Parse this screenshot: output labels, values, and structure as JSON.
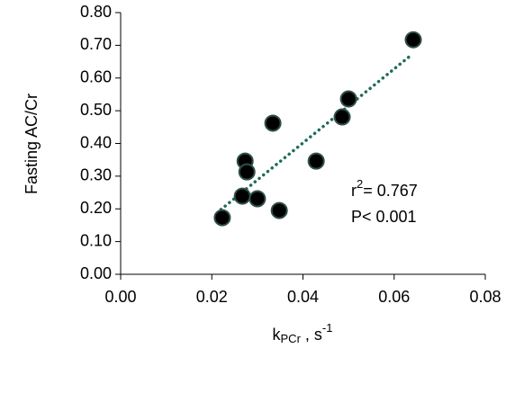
{
  "chart_data": {
    "type": "scatter",
    "y_label": "Fasting AC/Cr",
    "x_label": {
      "main": "k",
      "sub": "PCr",
      "mid": " , s",
      "sup": "-1"
    },
    "annotations": [
      {
        "text": "r",
        "sup": "2",
        "rest": "= 0.767"
      },
      {
        "text": "P< 0.001"
      }
    ],
    "x": [
      0.0223,
      0.0267,
      0.0273,
      0.0277,
      0.03,
      0.0334,
      0.0348,
      0.0429,
      0.0486,
      0.05,
      0.0642
    ],
    "values": [
      0.173,
      0.239,
      0.346,
      0.313,
      0.231,
      0.462,
      0.195,
      0.346,
      0.481,
      0.536,
      0.717
    ],
    "color": "#000000",
    "trendline": {
      "x": [
        0.022,
        0.064
      ],
      "y": [
        0.198,
        0.673
      ],
      "color": "#1e6b5c"
    },
    "xlim": [
      0,
      0.08
    ],
    "xticks": [
      {
        "value": 0,
        "label": "0.00"
      },
      {
        "value": 0.02,
        "label": "0.02"
      },
      {
        "value": 0.04,
        "label": "0.04"
      },
      {
        "value": 0.06,
        "label": "0.06"
      },
      {
        "value": 0.08,
        "label": "0.08"
      }
    ],
    "ylim": [
      0,
      0.8
    ],
    "yticks": [
      {
        "value": 0,
        "label": "0.00"
      },
      {
        "value": 0.1,
        "label": "0.10"
      },
      {
        "value": 0.2,
        "label": "0.20"
      },
      {
        "value": 0.3,
        "label": "0.30"
      },
      {
        "value": 0.4,
        "label": "0.40"
      },
      {
        "value": 0.5,
        "label": "0.50"
      },
      {
        "value": 0.6,
        "label": "0.60"
      },
      {
        "value": 0.7,
        "label": "0.70"
      },
      {
        "value": 0.8,
        "label": "0.80"
      }
    ],
    "grid": false
  }
}
